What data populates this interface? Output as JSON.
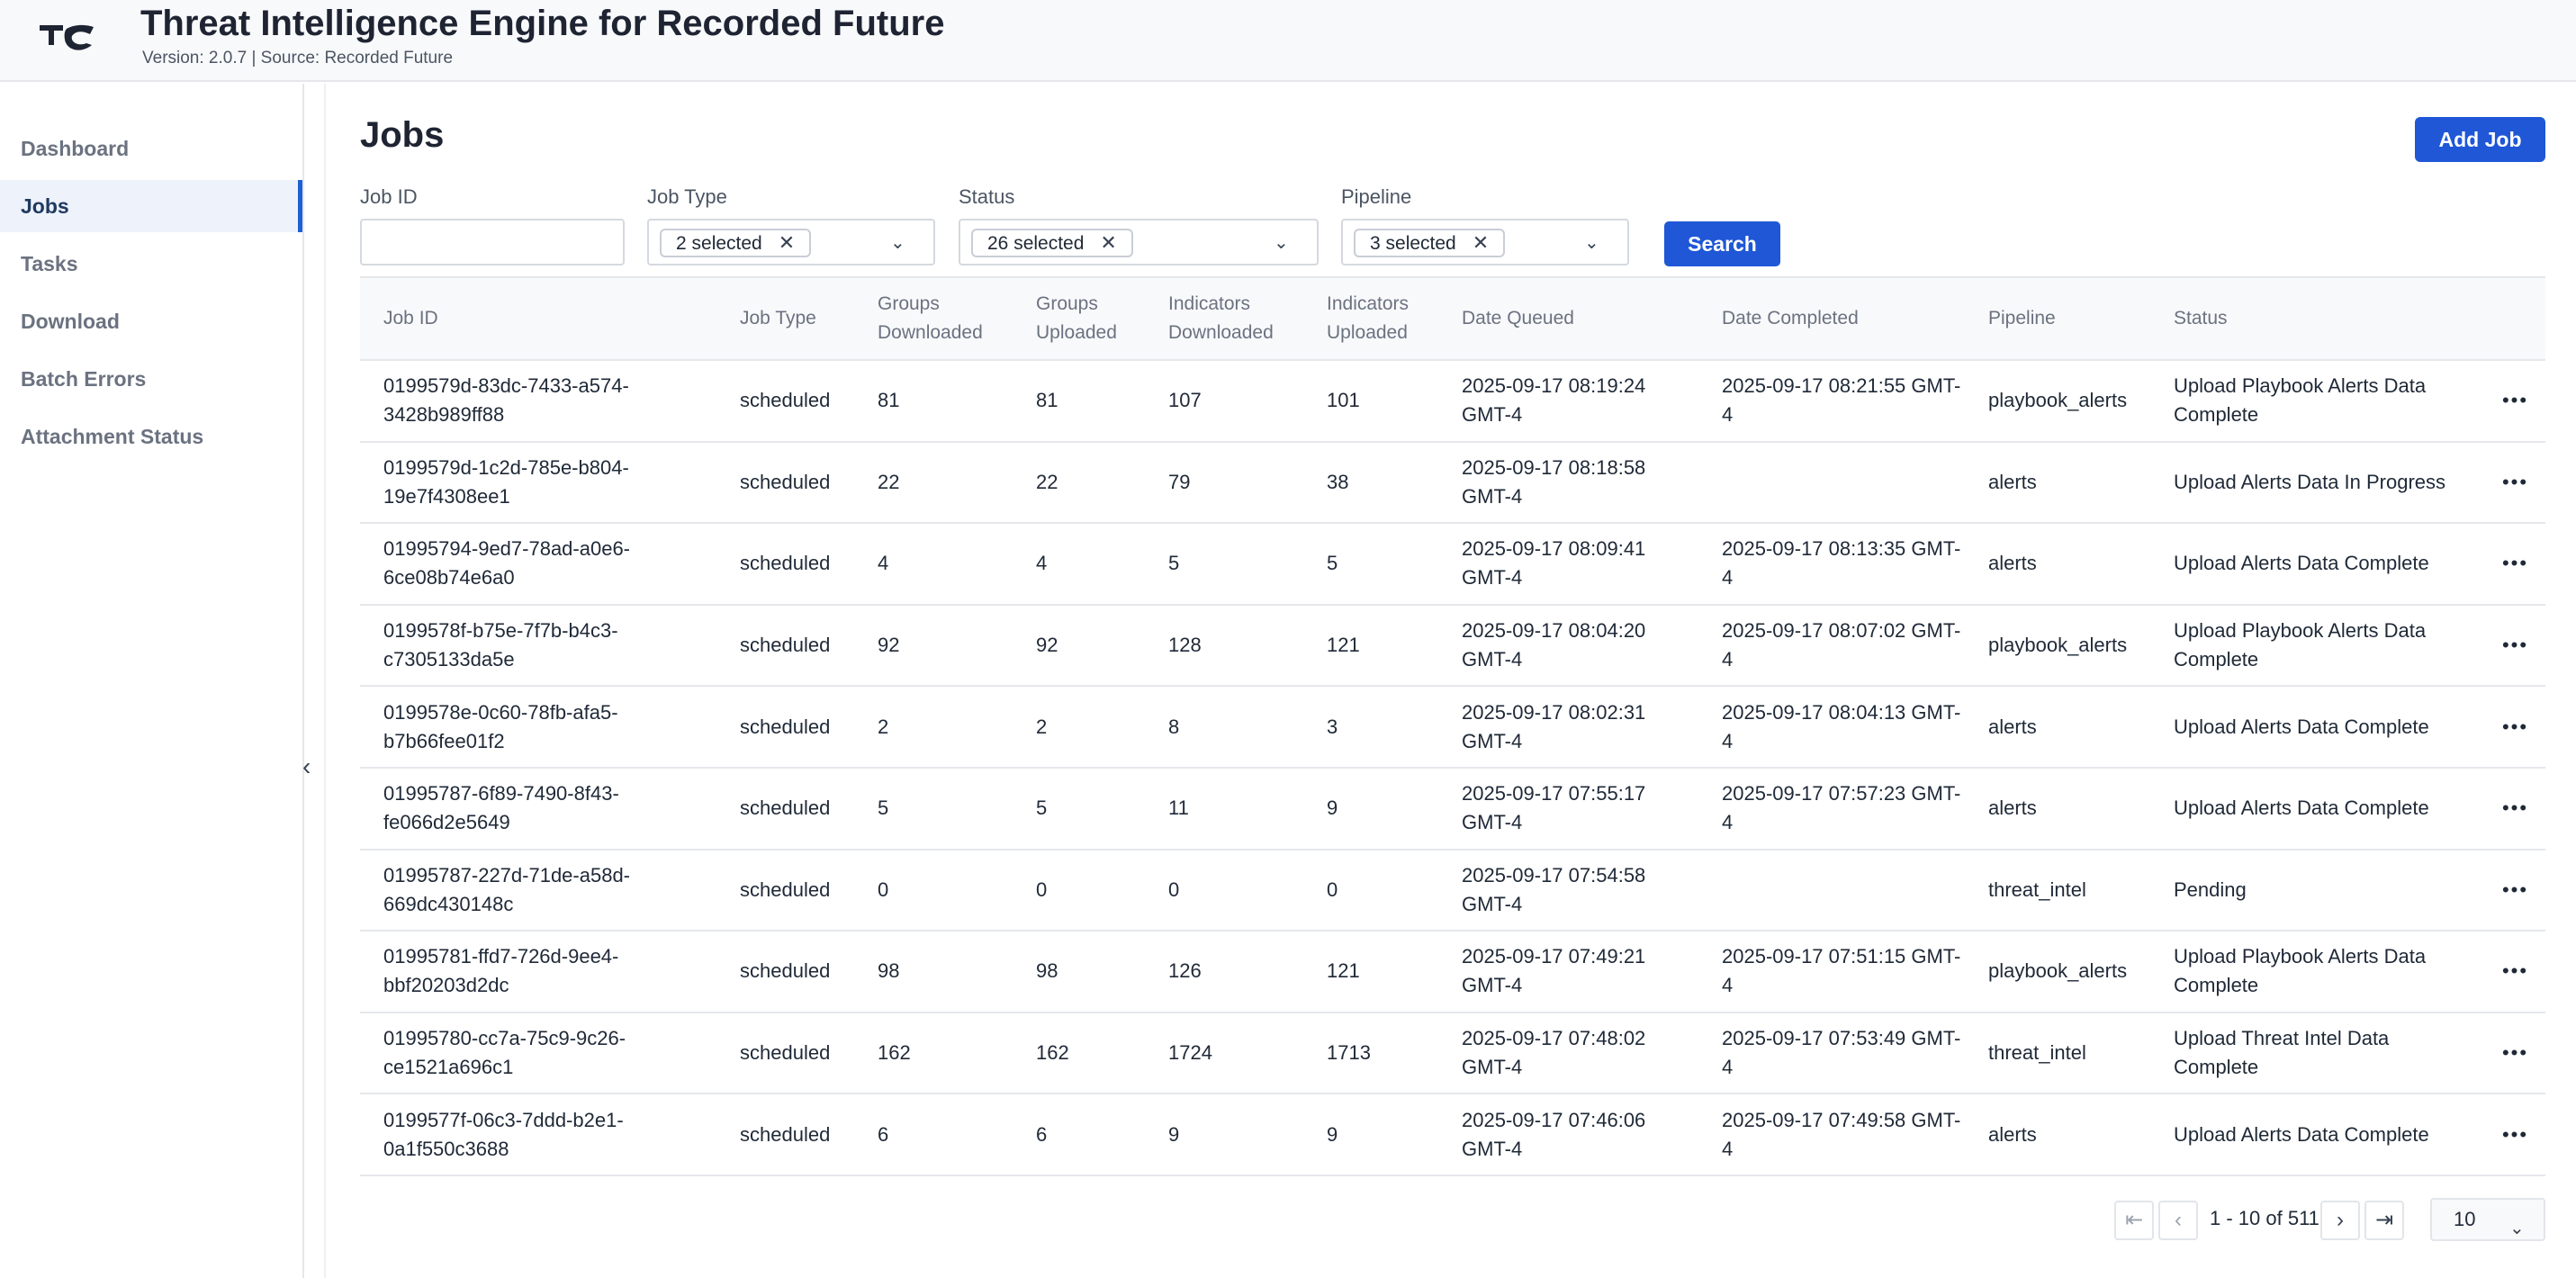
{
  "header": {
    "title": "Threat Intelligence Engine for Recorded Future",
    "subtitle": "Version: 2.0.7 | Source: Recorded Future",
    "logo_icon": "tc-logo-icon"
  },
  "sidebar": {
    "items": [
      {
        "label": "Dashboard",
        "active": false
      },
      {
        "label": "Jobs",
        "active": true
      },
      {
        "label": "Tasks",
        "active": false
      },
      {
        "label": "Download",
        "active": false
      },
      {
        "label": "Batch Errors",
        "active": false
      },
      {
        "label": "Attachment Status",
        "active": false
      }
    ],
    "collapse_icon": "chevron-left-icon"
  },
  "main": {
    "title": "Jobs",
    "add_job_label": "Add Job",
    "search_label": "Search",
    "filters": {
      "job_id": {
        "label": "Job ID",
        "value": "",
        "placeholder": ""
      },
      "job_type": {
        "label": "Job Type",
        "chip": "2 selected"
      },
      "status": {
        "label": "Status",
        "chip": "26 selected"
      },
      "pipeline": {
        "label": "Pipeline",
        "chip": "3 selected"
      }
    },
    "table": {
      "headers": [
        "Job ID",
        "Job Type",
        "Groups Downloaded",
        "Groups Uploaded",
        "Indicators Downloaded",
        "Indicators Uploaded",
        "Date Queued",
        "Date Completed",
        "Pipeline",
        "Status"
      ],
      "rows": [
        {
          "id": "0199579d-83dc-7433-a574-3428b989ff88",
          "type": "scheduled",
          "gd": "81",
          "gu": "81",
          "id_dl": "107",
          "id_ul": "101",
          "queued": "2025-09-17 08:19:24 GMT-4",
          "completed": "2025-09-17 08:21:55 GMT-4",
          "pipeline": "playbook_alerts",
          "status": "Upload Playbook Alerts Data Complete"
        },
        {
          "id": "0199579d-1c2d-785e-b804-19e7f4308ee1",
          "type": "scheduled",
          "gd": "22",
          "gu": "22",
          "id_dl": "79",
          "id_ul": "38",
          "queued": "2025-09-17 08:18:58 GMT-4",
          "completed": "",
          "pipeline": "alerts",
          "status": "Upload Alerts Data In Progress"
        },
        {
          "id": "01995794-9ed7-78ad-a0e6-6ce08b74e6a0",
          "type": "scheduled",
          "gd": "4",
          "gu": "4",
          "id_dl": "5",
          "id_ul": "5",
          "queued": "2025-09-17 08:09:41 GMT-4",
          "completed": "2025-09-17 08:13:35 GMT-4",
          "pipeline": "alerts",
          "status": "Upload Alerts Data Complete"
        },
        {
          "id": "0199578f-b75e-7f7b-b4c3-c7305133da5e",
          "type": "scheduled",
          "gd": "92",
          "gu": "92",
          "id_dl": "128",
          "id_ul": "121",
          "queued": "2025-09-17 08:04:20 GMT-4",
          "completed": "2025-09-17 08:07:02 GMT-4",
          "pipeline": "playbook_alerts",
          "status": "Upload Playbook Alerts Data Complete"
        },
        {
          "id": "0199578e-0c60-78fb-afa5-b7b66fee01f2",
          "type": "scheduled",
          "gd": "2",
          "gu": "2",
          "id_dl": "8",
          "id_ul": "3",
          "queued": "2025-09-17 08:02:31 GMT-4",
          "completed": "2025-09-17 08:04:13 GMT-4",
          "pipeline": "alerts",
          "status": "Upload Alerts Data Complete"
        },
        {
          "id": "01995787-6f89-7490-8f43-fe066d2e5649",
          "type": "scheduled",
          "gd": "5",
          "gu": "5",
          "id_dl": "11",
          "id_ul": "9",
          "queued": "2025-09-17 07:55:17 GMT-4",
          "completed": "2025-09-17 07:57:23 GMT-4",
          "pipeline": "alerts",
          "status": "Upload Alerts Data Complete"
        },
        {
          "id": "01995787-227d-71de-a58d-669dc430148c",
          "type": "scheduled",
          "gd": "0",
          "gu": "0",
          "id_dl": "0",
          "id_ul": "0",
          "queued": "2025-09-17 07:54:58 GMT-4",
          "completed": "",
          "pipeline": "threat_intel",
          "status": "Pending"
        },
        {
          "id": "01995781-ffd7-726d-9ee4-bbf20203d2dc",
          "type": "scheduled",
          "gd": "98",
          "gu": "98",
          "id_dl": "126",
          "id_ul": "121",
          "queued": "2025-09-17 07:49:21 GMT-4",
          "completed": "2025-09-17 07:51:15 GMT-4",
          "pipeline": "playbook_alerts",
          "status": "Upload Playbook Alerts Data Complete"
        },
        {
          "id": "01995780-cc7a-75c9-9c26-ce1521a696c1",
          "type": "scheduled",
          "gd": "162",
          "gu": "162",
          "id_dl": "1724",
          "id_ul": "1713",
          "queued": "2025-09-17 07:48:02 GMT-4",
          "completed": "2025-09-17 07:53:49 GMT-4",
          "pipeline": "threat_intel",
          "status": "Upload Threat Intel Data Complete"
        },
        {
          "id": "0199577f-06c3-7ddd-b2e1-0a1f550c3688",
          "type": "scheduled",
          "gd": "6",
          "gu": "6",
          "id_dl": "9",
          "id_ul": "9",
          "queued": "2025-09-17 07:46:06 GMT-4",
          "completed": "2025-09-17 07:49:58 GMT-4",
          "pipeline": "alerts",
          "status": "Upload Alerts Data Complete"
        }
      ]
    },
    "pagination": {
      "range": "1 - 10 of 511",
      "page_size": "10"
    }
  },
  "colors": {
    "primary": "#1f57d6",
    "active_bg": "#eef2fb",
    "border": "#e5e7eb"
  }
}
